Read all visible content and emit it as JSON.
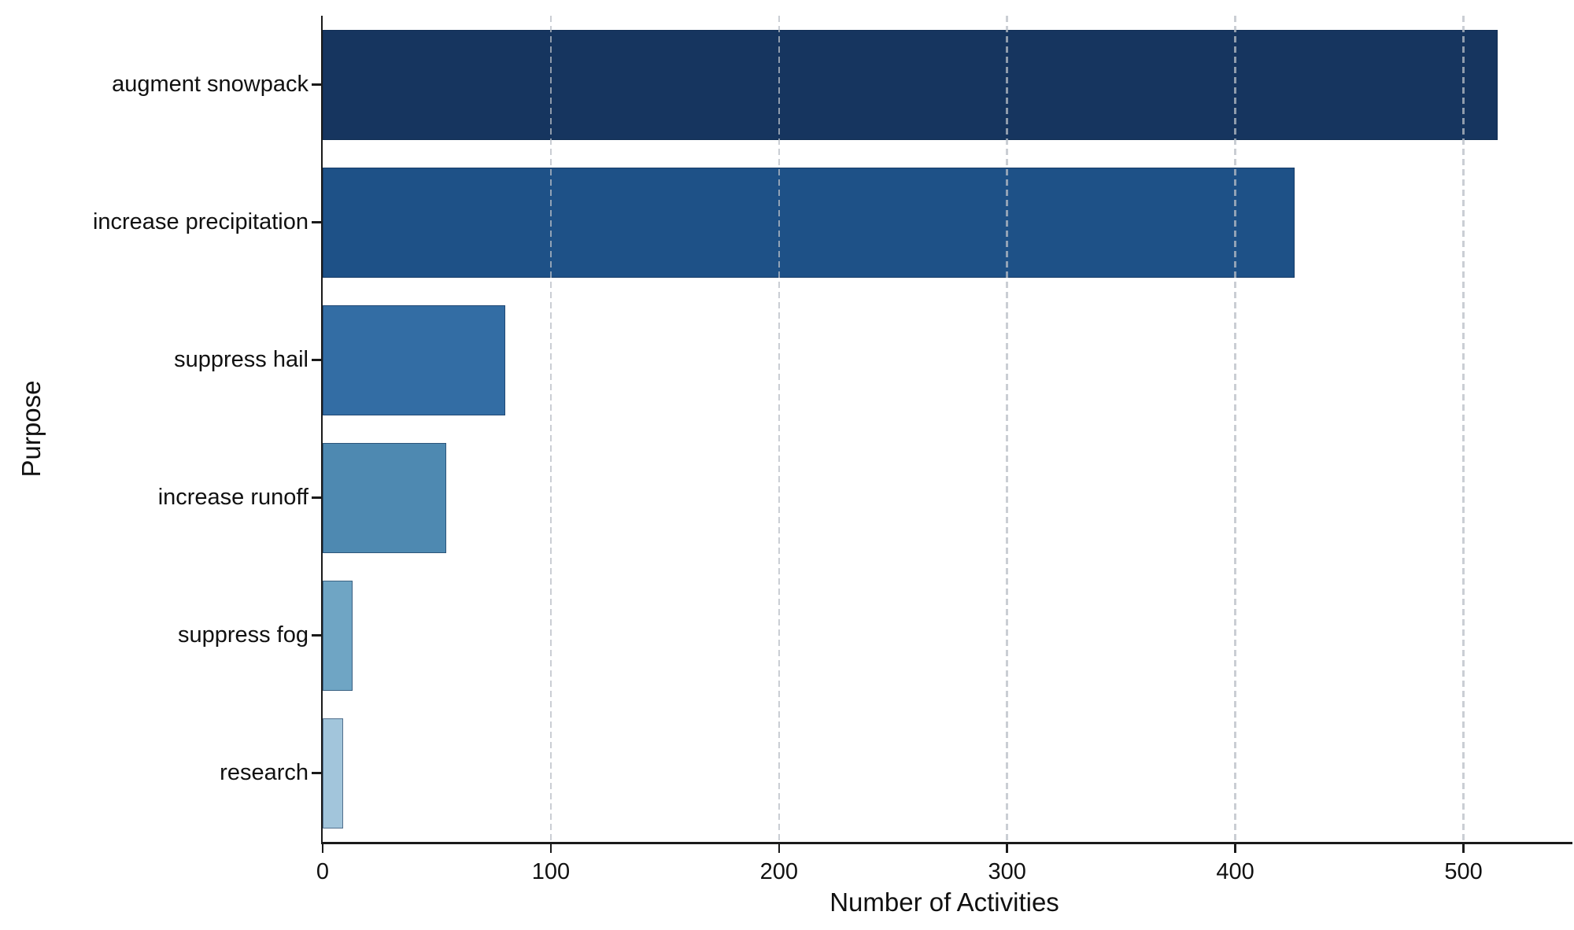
{
  "chart_data": {
    "type": "bar",
    "orientation": "horizontal",
    "title": "",
    "xlabel": "Number of Activities",
    "ylabel": "Purpose",
    "categories": [
      "augment snowpack",
      "increase precipitation",
      "suppress hail",
      "increase runoff",
      "suppress fog",
      "research"
    ],
    "values": [
      515,
      426,
      80,
      54,
      13,
      9
    ],
    "xlim": [
      0,
      545
    ],
    "x_ticks": [
      0,
      100,
      200,
      300,
      400,
      500
    ],
    "grid": "vertical-dashed",
    "legend": "none",
    "bar_colors": [
      "#16355f",
      "#1e5187",
      "#336da4",
      "#4e89b1",
      "#6fa5c4",
      "#a2c5db"
    ],
    "bar_edge_color": "#10294d",
    "gridline_color": "#b9bec6",
    "axis_color": "#1a1a1a"
  }
}
